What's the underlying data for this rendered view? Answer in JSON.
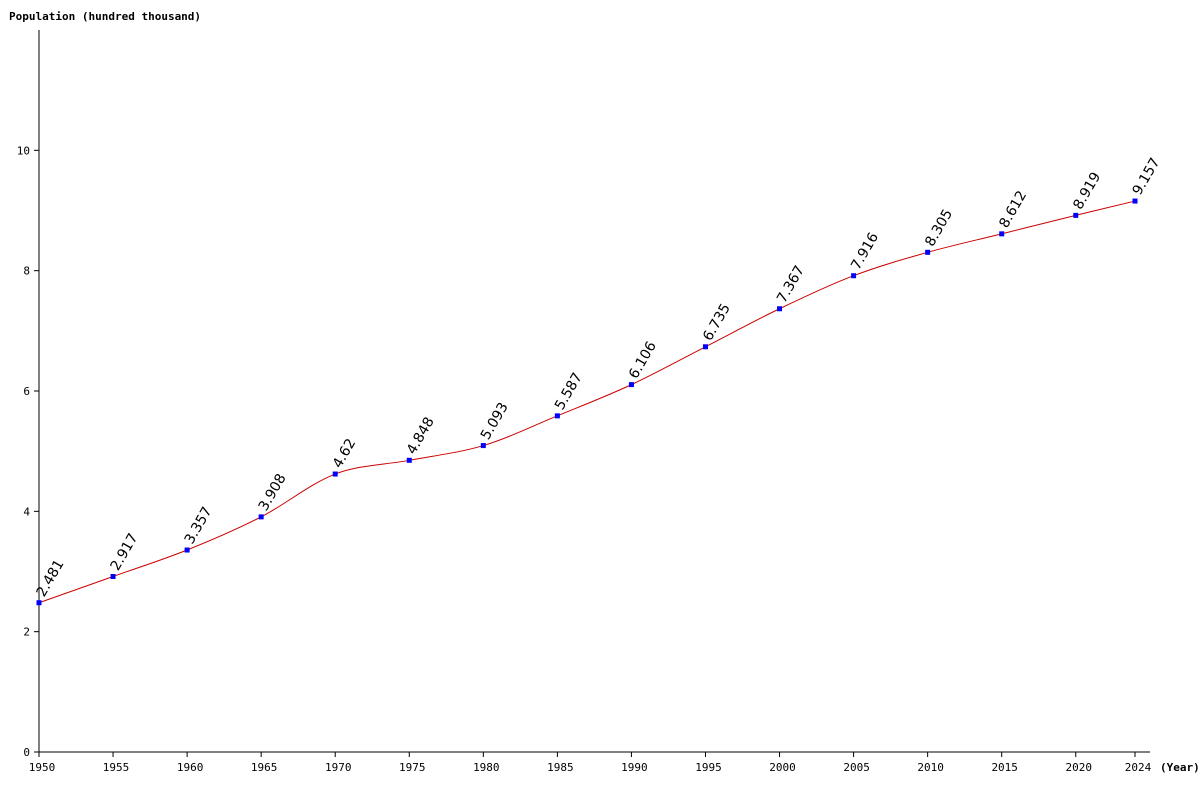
{
  "chart_data": {
    "type": "line",
    "title": "",
    "ylabel": "Population (hundred thousand)",
    "xlabel": "(Year)",
    "x": [
      1950,
      1955,
      1960,
      1965,
      1970,
      1975,
      1980,
      1985,
      1990,
      1995,
      2000,
      2005,
      2010,
      2015,
      2020,
      2024
    ],
    "x_ticks": [
      "1950",
      "1955",
      "1960",
      "1965",
      "1970",
      "1975",
      "1980",
      "1985",
      "1990",
      "1995",
      "2000",
      "2005",
      "2010",
      "2015",
      "2020",
      "2024"
    ],
    "series": [
      {
        "values": [
          2.481,
          2.917,
          3.357,
          3.908,
          4.62,
          4.848,
          5.093,
          5.587,
          6.106,
          6.735,
          7.367,
          7.916,
          8.305,
          8.612,
          8.919,
          9.157
        ],
        "labels": [
          "2.481",
          "2.917",
          "3.357",
          "3.908",
          "4.62",
          "4.848",
          "5.093",
          "5.587",
          "6.106",
          "6.735",
          "7.367",
          "7.916",
          "8.305",
          "8.612",
          "8.919",
          "9.157"
        ],
        "line_color": "#cc0000",
        "marker_color": "#0000ff"
      }
    ],
    "y_ticks": [
      "0",
      "2",
      "4",
      "6",
      "8",
      "10"
    ],
    "y_tick_values": [
      0,
      2,
      4,
      6,
      8,
      10
    ],
    "xlim": [
      1950,
      2024
    ],
    "ylim": [
      0,
      12
    ],
    "grid": false,
    "legend": "none"
  }
}
